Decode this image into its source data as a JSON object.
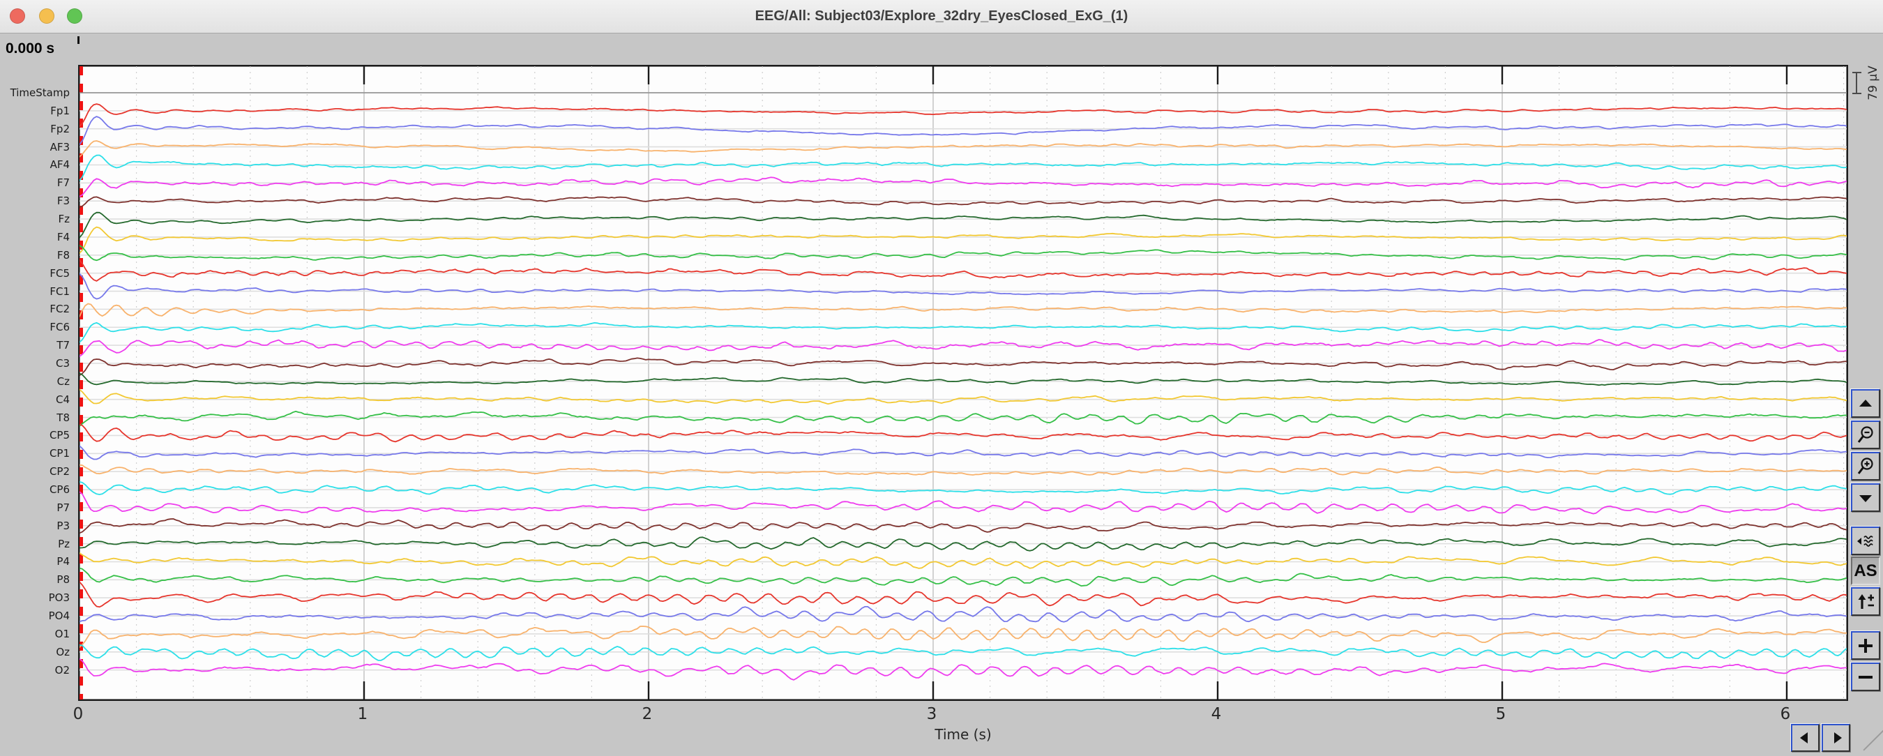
{
  "window": {
    "title": "EEG/All: Subject03/Explore_32dry_EyesClosed_ExG_(1)",
    "traffic_lights": [
      {
        "name": "close",
        "color": "#ee6a5f"
      },
      {
        "name": "minimize",
        "color": "#f5bf4f"
      },
      {
        "name": "zoom",
        "color": "#61c554"
      }
    ]
  },
  "status": {
    "time_cursor": "0.000 s"
  },
  "scale_indicator": {
    "label": "79 µV"
  },
  "colors": {
    "window_bg": "#c6c6c6",
    "titlebar_bg": "#ececec",
    "plot_bg": "#fdfdfd",
    "grid_major": "#bcbcbc",
    "grid_minor": "#cfcfcf",
    "baseline": "#dedede",
    "edge_marker_red": "#ee1313",
    "button_accent_blue": "#2d52cc",
    "tick_mark": "#1a1a1a"
  },
  "chart_data": {
    "type": "line",
    "title": "EEG time-series viewer, 32 channels + TimeStamp, eyes-closed recording",
    "xlabel": "Time (s)",
    "x_ticks": [
      "0",
      "1",
      "2",
      "3",
      "4",
      "5",
      "6"
    ],
    "x_range": [
      0,
      6.22
    ],
    "grid": {
      "major_every_s": 1.0,
      "minor_every_s": 0.2
    },
    "amplitude_scale": "79 µV per channel slot",
    "channels": [
      {
        "label": "TimeStamp",
        "color": "#8a8a8a",
        "d": 0,
        "w": 0,
        "a": 0,
        "n": 0,
        "s": 0,
        "b": 0
      },
      {
        "label": "Fp1",
        "color": "#e6352c",
        "d": 4,
        "w": 1.5,
        "a": 0.8,
        "n": 0.8,
        "s": -22,
        "b": 0
      },
      {
        "label": "Fp2",
        "color": "#7678ea",
        "d": 8,
        "w": 2,
        "a": 0.8,
        "n": 0.8,
        "s": -26,
        "b": 0
      },
      {
        "label": "AF3",
        "color": "#f8b26c",
        "d": 5,
        "w": 1.5,
        "a": 0.8,
        "n": 0.8,
        "s": -14,
        "b": 0
      },
      {
        "label": "AF4",
        "color": "#2cdfe8",
        "d": 3,
        "w": 2,
        "a": 1.2,
        "n": 1.2,
        "s": -24,
        "b": 0
      },
      {
        "label": "F7",
        "color": "#ee3cee",
        "d": 4,
        "w": 3,
        "a": 2,
        "n": 1.4,
        "s": -16,
        "b": 0
      },
      {
        "label": "F3",
        "color": "#7e322e",
        "d": 4,
        "w": 2.5,
        "a": 1.2,
        "n": 1,
        "s": -10,
        "b": 0
      },
      {
        "label": "Fz",
        "color": "#23682c",
        "d": 4,
        "w": 2,
        "a": 1,
        "n": 0.8,
        "s": -24,
        "b": 0
      },
      {
        "label": "F4",
        "color": "#f2c832",
        "d": 3.5,
        "w": 2,
        "a": 1,
        "n": 0.8,
        "s": -25,
        "b": 0
      },
      {
        "label": "F8",
        "color": "#35bf47",
        "d": 5,
        "w": 2.5,
        "a": 1.5,
        "n": 1,
        "s": 14,
        "b": 0
      },
      {
        "label": "FC5",
        "color": "#e6352c",
        "d": 4,
        "w": 3,
        "a": 2,
        "n": 1.5,
        "s": 20,
        "b": 0
      },
      {
        "label": "FC1",
        "color": "#7678ea",
        "d": 3,
        "w": 2,
        "a": 1.2,
        "n": 0.8,
        "s": 24,
        "b": 0
      },
      {
        "label": "FC2",
        "color": "#f8b26c",
        "d": 3,
        "w": 2,
        "a": 1,
        "n": 1,
        "s": -10,
        "b": 14
      },
      {
        "label": "FC6",
        "color": "#2cdfe8",
        "d": 3,
        "w": 2.5,
        "a": 1.5,
        "n": 1,
        "s": -18,
        "b": 0
      },
      {
        "label": "T7",
        "color": "#ee3cee",
        "d": 3.5,
        "w": 4,
        "a": 3,
        "n": 1.8,
        "s": -22,
        "b": 0
      },
      {
        "label": "C3",
        "color": "#7e322e",
        "d": 4,
        "w": 3,
        "a": 1.5,
        "n": 1.2,
        "s": -14,
        "b": 0
      },
      {
        "label": "Cz",
        "color": "#23682c",
        "d": 3,
        "w": 2.5,
        "a": 1.2,
        "n": 0.8,
        "s": 10,
        "b": 0
      },
      {
        "label": "C4",
        "color": "#f2c832",
        "d": 3,
        "w": 3,
        "a": 1.5,
        "n": 1,
        "s": 14,
        "b": 0
      },
      {
        "label": "T8",
        "color": "#35bf47",
        "d": 3,
        "w": 4,
        "a": 4,
        "n": 1.5,
        "s": -10,
        "b": 0
      },
      {
        "label": "CP5",
        "color": "#e6352c",
        "d": 3.5,
        "w": 4,
        "a": 3,
        "n": 1.3,
        "s": 18,
        "b": 0
      },
      {
        "label": "CP1",
        "color": "#7678ea",
        "d": 3,
        "w": 3,
        "a": 2,
        "n": 1,
        "s": 12,
        "b": 0
      },
      {
        "label": "CP2",
        "color": "#f8b26c",
        "d": 3,
        "w": 3,
        "a": 2,
        "n": 1,
        "s": 10,
        "b": 0
      },
      {
        "label": "CP6",
        "color": "#2cdfe8",
        "d": 3,
        "w": 3.5,
        "a": 2.5,
        "n": 1,
        "s": 12,
        "b": 0
      },
      {
        "label": "P7",
        "color": "#ee3cee",
        "d": 3.5,
        "w": 5,
        "a": 5,
        "n": 1.3,
        "s": 16,
        "b": 0
      },
      {
        "label": "P3",
        "color": "#7e322e",
        "d": 3,
        "w": 4.5,
        "a": 4,
        "n": 1.2,
        "s": -12,
        "b": 0
      },
      {
        "label": "Pz",
        "color": "#23682c",
        "d": 3,
        "w": 4.5,
        "a": 4.5,
        "n": 1.2,
        "s": -8,
        "b": 0
      },
      {
        "label": "P4",
        "color": "#f2c832",
        "d": 3,
        "w": 4.5,
        "a": 4,
        "n": 1.2,
        "s": 10,
        "b": 0
      },
      {
        "label": "P8",
        "color": "#35bf47",
        "d": 3,
        "w": 4,
        "a": 4,
        "n": 1.2,
        "s": 12,
        "b": 0
      },
      {
        "label": "PO3",
        "color": "#e6352c",
        "d": 3,
        "w": 5.5,
        "a": 6,
        "n": 1.3,
        "s": 18,
        "b": 0
      },
      {
        "label": "PO4",
        "color": "#7678ea",
        "d": 3,
        "w": 5.5,
        "a": 6,
        "n": 1.3,
        "s": -12,
        "b": 0
      },
      {
        "label": "O1",
        "color": "#f8b26c",
        "d": 3,
        "w": 6,
        "a": 7,
        "n": 1.4,
        "s": -16,
        "b": 0
      },
      {
        "label": "Oz",
        "color": "#2cdfe8",
        "d": 3,
        "w": 5,
        "a": 5.5,
        "n": 1.3,
        "s": 12,
        "b": 0
      },
      {
        "label": "O2",
        "color": "#ee3cee",
        "d": 3.5,
        "w": 5.5,
        "a": 6,
        "n": 1.5,
        "s": 20,
        "b": 0
      }
    ]
  },
  "toolbar": {
    "buttons": [
      {
        "name": "scroll-up-button",
        "icon": "arrow-up-icon"
      },
      {
        "name": "zoom-out-button",
        "icon": "zoom-out-icon"
      },
      {
        "name": "zoom-in-button",
        "icon": "zoom-in-icon"
      },
      {
        "name": "scroll-down-button",
        "icon": "arrow-down-icon"
      },
      {
        "name": "prev-signals-button",
        "icon": "signal-wave-left-icon"
      },
      {
        "name": "autoscale-button",
        "label": "AS",
        "pressed": true
      },
      {
        "name": "amplitude-range-button",
        "icon": "arrow-up-plusminus-icon"
      },
      {
        "name": "increase-amplitude-button",
        "icon": "plus-icon"
      },
      {
        "name": "decrease-amplitude-button",
        "icon": "minus-icon"
      }
    ],
    "nav_buttons": [
      {
        "name": "page-left-button",
        "icon": "triangle-left-icon"
      },
      {
        "name": "page-right-button",
        "icon": "triangle-right-icon"
      }
    ]
  }
}
